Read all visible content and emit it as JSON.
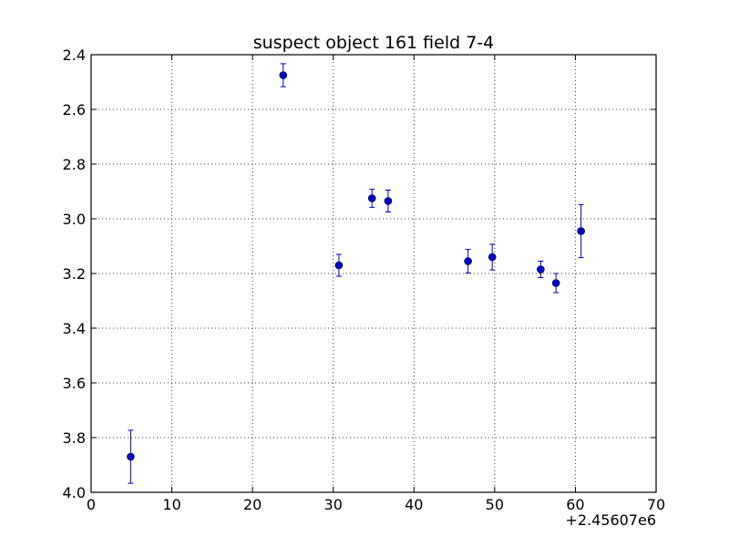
{
  "chart_data": {
    "type": "scatter",
    "title": "suspect object 161 field 7-4",
    "xlabel": "",
    "ylabel": "",
    "x_offset_label": "+2.45607e6",
    "xlim": [
      0,
      70
    ],
    "ylim": [
      2.4,
      4.0
    ],
    "y_inverted": true,
    "grid": true,
    "marker_color": "#0000cc",
    "x_ticks": [
      0,
      10,
      20,
      30,
      40,
      50,
      60,
      70
    ],
    "x_tick_labels": [
      "0",
      "10",
      "20",
      "30",
      "40",
      "50",
      "60",
      "70"
    ],
    "y_ticks": [
      2.4,
      2.6,
      2.8,
      3.0,
      3.2,
      3.4,
      3.6,
      3.8,
      4.0
    ],
    "y_tick_labels": [
      "2.4",
      "2.6",
      "2.8",
      "3.0",
      "3.2",
      "3.4",
      "3.6",
      "3.8",
      "4.0"
    ],
    "points": [
      {
        "x": 4.9,
        "y": 3.87,
        "err": 0.097
      },
      {
        "x": 23.8,
        "y": 2.475,
        "err": 0.042
      },
      {
        "x": 30.7,
        "y": 3.17,
        "err": 0.04
      },
      {
        "x": 34.8,
        "y": 2.925,
        "err": 0.033
      },
      {
        "x": 36.8,
        "y": 2.935,
        "err": 0.04
      },
      {
        "x": 46.7,
        "y": 3.155,
        "err": 0.043
      },
      {
        "x": 49.7,
        "y": 3.14,
        "err": 0.047
      },
      {
        "x": 55.7,
        "y": 3.185,
        "err": 0.03
      },
      {
        "x": 57.6,
        "y": 3.235,
        "err": 0.035
      },
      {
        "x": 60.7,
        "y": 3.045,
        "err": 0.097
      }
    ]
  }
}
